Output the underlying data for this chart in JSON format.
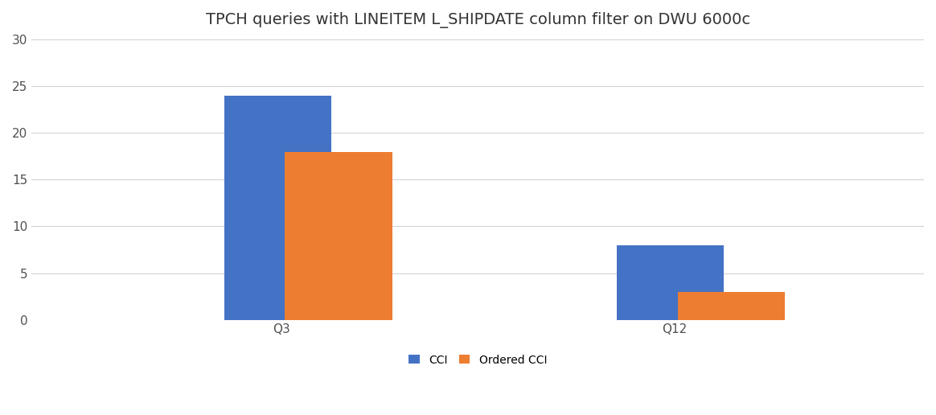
{
  "title": "TPCH queries with LINEITEM L_SHIPDATE column filter on DWU 6000c",
  "categories": [
    "Q3",
    "Q12"
  ],
  "series": [
    {
      "name": "CCI",
      "values": [
        24,
        8
      ],
      "color": "#4472C4"
    },
    {
      "name": "Ordered CCI",
      "values": [
        18,
        3
      ],
      "color": "#ED7D31"
    }
  ],
  "ylim": [
    0,
    30
  ],
  "yticks": [
    0,
    5,
    10,
    15,
    20,
    25,
    30
  ],
  "bar_width": 0.12,
  "group_centers": [
    0.28,
    0.72
  ],
  "xlim": [
    0,
    1.0
  ],
  "background_color": "#FFFFFF",
  "grid_color": "#D3D3D3",
  "title_fontsize": 14,
  "tick_fontsize": 11,
  "legend_fontsize": 10
}
